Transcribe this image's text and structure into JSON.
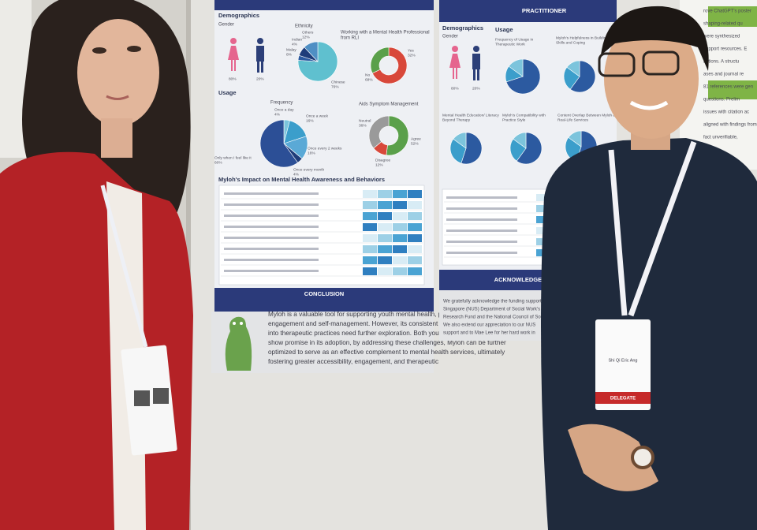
{
  "poster": {
    "youth": {
      "demographics": "Demographics",
      "gender": {
        "title": "Gender",
        "values": [
          80,
          20
        ],
        "value_labels": [
          "80%",
          "20%"
        ]
      },
      "ethnicity": {
        "title": "Ethnicity",
        "labels": [
          "Chinese",
          "Indian",
          "Malay",
          "Others"
        ],
        "values": [
          76,
          4,
          8,
          12
        ],
        "value_labels": [
          "76%",
          "4%",
          "8%",
          "12%"
        ]
      },
      "professional": {
        "title": [
          "Working with a Mental Health Professional",
          "from RLI"
        ],
        "labels": [
          "No",
          "Yes"
        ],
        "values": [
          68,
          32
        ],
        "value_labels": [
          "68%",
          "32%"
        ]
      },
      "usage": "Usage",
      "frequency": {
        "title": "Frequency",
        "labels": [
          "Once a day",
          "Once a week",
          "Once every 2 weeks",
          "Once every month",
          "Only when I feel like it"
        ],
        "values": [
          4,
          16,
          16,
          4,
          60
        ],
        "value_labels": [
          "4%",
          "16%",
          "16%",
          "4%",
          "60%"
        ]
      },
      "symptoms": {
        "title": "Aids Symptom Management",
        "labels": [
          "Agree",
          "Disagree",
          "Neutral"
        ],
        "values": [
          52,
          12,
          36
        ],
        "value_labels": [
          "52%",
          "12%",
          "36%"
        ]
      },
      "impact_title": "Myloh's Impact on Mental Health Awareness and Behaviors"
    },
    "conclusion": {
      "heading": "CONCLUSION",
      "lines": [
        "Myloh is a valuable tool for supporting youth mental health, particularly for",
        "engagement and self-management. However, its consistent usage and integration",
        "into therapeutic practices need further exploration. Both youths and practitioners",
        "show promise in its adoption, by addressing these challenges, Myloh can be further",
        "optimized to serve as an effective complement to mental health services, ultimately",
        "fostering greater accessibility, engagement, and therapeutic"
      ]
    },
    "practitioner": {
      "heading": "PRACTITIONER",
      "demographics": "Demographics",
      "gender": {
        "title": "Gender",
        "values": [
          80,
          20
        ],
        "value_labels": [
          "80%",
          "20%"
        ]
      },
      "usage": "Usage",
      "charts": [
        {
          "title": [
            "Frequency of Usage in",
            "Therapeutic Work"
          ],
          "values": [
            70,
            15,
            15
          ]
        },
        {
          "title": [
            "Myloh's Helpfulness in Building Youth",
            "Skills and Coping"
          ],
          "values": [
            60,
            25,
            15
          ]
        },
        {
          "title": [
            "Mental Health Education/ Literacy",
            "Beyond Therapy"
          ],
          "values": [
            55,
            30,
            15
          ]
        },
        {
          "title": [
            "Myloh's Compatibility with",
            "Practice Style"
          ],
          "values": [
            60,
            25,
            15
          ]
        },
        {
          "title": [
            "Content Overlap Between Myloh &",
            "Real-Life Services"
          ],
          "values": [
            55,
            30,
            15
          ]
        }
      ],
      "acknowledgements": {
        "heading": "ACKNOWLEDGEMENTS",
        "lines": [
          "We gratefully acknowledge the funding support from",
          "Singapore (NUS) Department of Social Work's Mi",
          "Research Fund and the National Council of Social Se",
          "We also extend our appreciation to our NUS",
          "support and to Mae Lee for her hard work in"
        ]
      }
    },
    "neighbour": {
      "lines": [
        "rove ChatGPT's poster",
        "shaping-related qu",
        "were synthesized",
        "support resources. E",
        "actions. A structu",
        "ases and journal re",
        "81 references were gen",
        "questions. Prelim",
        "issues with citation ac",
        "aligned with findings from",
        "fact unverifiable,",
        "sed"
      ]
    }
  },
  "badge": {
    "name": "Shi Qi Eric Ang",
    "role": "DELEGATE"
  }
}
